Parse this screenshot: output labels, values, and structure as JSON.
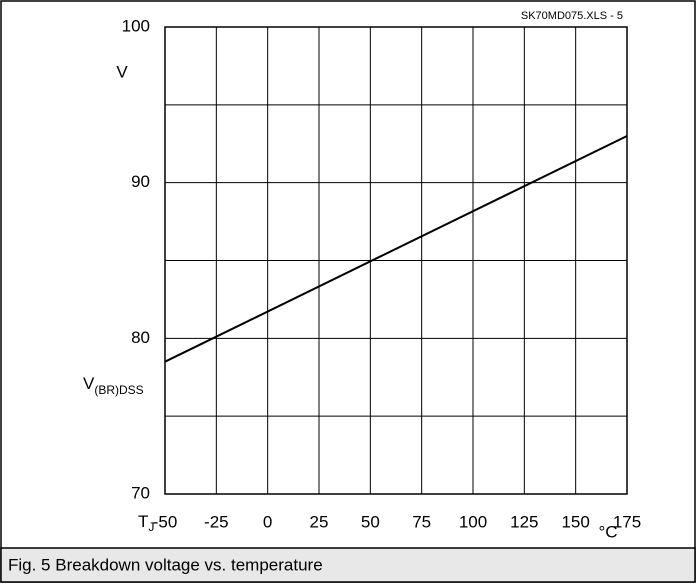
{
  "chart_data": {
    "type": "line",
    "file_label": "SK70MD075.XLS - 5",
    "caption": "Fig. 5 Breakdown voltage vs. temperature",
    "ylabel": {
      "main": "V",
      "sub": "(BR)DSS"
    },
    "yunit": "V",
    "xlabel": {
      "main": "T",
      "sub": "J"
    },
    "xunit": "°C",
    "x": [
      -50,
      175
    ],
    "series": [
      {
        "color": "#000000",
        "values": [
          78.5,
          93
        ]
      }
    ],
    "xlim": [
      -50,
      175
    ],
    "xticks": [
      -50,
      -25,
      0,
      25,
      50,
      75,
      100,
      125,
      150,
      175
    ],
    "ylim": [
      70,
      100
    ],
    "yticks": [
      70,
      80,
      90,
      100
    ],
    "ygrid": [
      70,
      75,
      80,
      85,
      90,
      95,
      100
    ],
    "grid": true
  }
}
